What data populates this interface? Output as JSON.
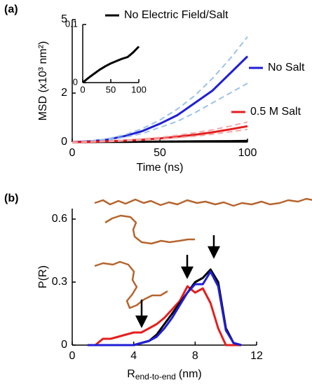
{
  "chart_data": [
    {
      "type": "line",
      "panel_label": "(a)",
      "xlabel": "Time (ns)",
      "ylabel": "MSD (x10³ nm²)",
      "xlim": [
        0,
        100
      ],
      "ylim": [
        0,
        5
      ],
      "xticks": [
        0,
        50,
        100
      ],
      "yticks": [
        0,
        2,
        5
      ],
      "x": [
        0,
        10,
        20,
        30,
        40,
        50,
        60,
        70,
        80,
        90,
        100
      ],
      "series": [
        {
          "name": "No Electric Field/Salt",
          "color": "#000000",
          "values": [
            0,
            0.002,
            0.005,
            0.01,
            0.015,
            0.02,
            0.025,
            0.03,
            0.035,
            0.04,
            0.05
          ]
        },
        {
          "name": "No Salt",
          "color": "#1f1fd6",
          "values": [
            0,
            0.03,
            0.1,
            0.25,
            0.45,
            0.75,
            1.1,
            1.6,
            2.1,
            2.8,
            3.5
          ]
        },
        {
          "color": "#9cc3e6",
          "dashed": true,
          "values": [
            0,
            0.04,
            0.13,
            0.3,
            0.55,
            0.9,
            1.35,
            1.9,
            2.6,
            3.4,
            4.3
          ]
        },
        {
          "color": "#9cc3e6",
          "dashed": true,
          "values": [
            0,
            0.02,
            0.08,
            0.2,
            0.35,
            0.6,
            0.85,
            1.2,
            1.6,
            2.0,
            2.4
          ]
        },
        {
          "name": "0.5 M Salt",
          "color": "#e41e1e",
          "values": [
            0,
            0.01,
            0.03,
            0.06,
            0.1,
            0.15,
            0.22,
            0.3,
            0.4,
            0.52,
            0.65
          ]
        },
        {
          "color": "#f4a6a6",
          "dashed": true,
          "values": [
            0,
            0.013,
            0.04,
            0.08,
            0.13,
            0.19,
            0.28,
            0.38,
            0.5,
            0.65,
            0.82
          ]
        },
        {
          "color": "#f4a6a6",
          "dashed": true,
          "values": [
            0,
            0.008,
            0.024,
            0.05,
            0.08,
            0.12,
            0.18,
            0.24,
            0.32,
            0.42,
            0.52
          ]
        }
      ]
    },
    {
      "type": "line",
      "xlim": [
        0,
        100
      ],
      "ylim": [
        0,
        0.1
      ],
      "xticks": [
        0,
        50,
        100
      ],
      "yticks": [
        0,
        0.1
      ],
      "x": [
        0,
        10,
        20,
        30,
        40,
        50,
        60,
        70,
        80,
        90,
        100
      ],
      "series": [
        {
          "color": "#000000",
          "values": [
            0,
            0.008,
            0.015,
            0.022,
            0.028,
            0.033,
            0.037,
            0.041,
            0.044,
            0.052,
            0.062
          ]
        }
      ]
    },
    {
      "type": "line",
      "panel_label": "(b)",
      "ylabel": "P(R)",
      "xlabel": {
        "main": "R",
        "sub": "end-to-end",
        "unit": "(nm)"
      },
      "xlim": [
        0,
        12
      ],
      "ylim": [
        0,
        0.65
      ],
      "xticks": [
        0,
        4,
        8,
        12
      ],
      "yticks": [
        0,
        0.3,
        0.6
      ],
      "x": [
        1,
        1.5,
        2,
        2.5,
        3,
        3.5,
        4,
        4.5,
        5,
        5.5,
        6,
        6.5,
        7,
        7.5,
        8,
        8.5,
        9,
        9.5,
        10,
        10.5,
        11
      ],
      "series": [
        {
          "color": "#e41e1e",
          "values": [
            0,
            0,
            0.03,
            0.03,
            0.04,
            0.05,
            0.06,
            0.06,
            0.08,
            0.1,
            0.13,
            0.17,
            0.21,
            0.28,
            0.25,
            0.27,
            0.2,
            0.08,
            0,
            0,
            0
          ]
        },
        {
          "color": "#000000",
          "values": [
            0,
            0,
            0,
            0,
            0,
            0,
            0,
            0.01,
            0.02,
            0.05,
            0.1,
            0.15,
            0.2,
            0.25,
            0.3,
            0.32,
            0.36,
            0.3,
            0.08,
            0.01,
            0
          ]
        },
        {
          "color": "#1f1fd6",
          "values": [
            0,
            0,
            0,
            0,
            0,
            0,
            0,
            0.01,
            0.02,
            0.04,
            0.08,
            0.13,
            0.19,
            0.25,
            0.29,
            0.29,
            0.35,
            0.28,
            0.07,
            0.01,
            0
          ]
        }
      ]
    }
  ]
}
